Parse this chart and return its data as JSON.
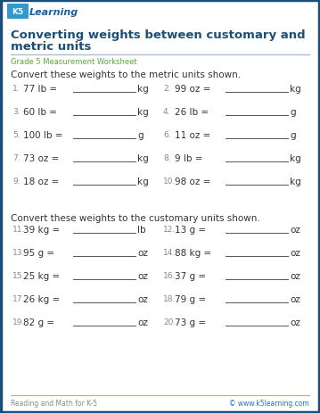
{
  "title_line1": "Converting weights between customary and",
  "title_line2": "metric units",
  "subtitle": "Grade 5 Measurement Worksheet",
  "section1_header": "Convert these weights to the metric units shown.",
  "section2_header": "Convert these weights to the customary units shown.",
  "footer_left": "Reading and Math for K-5",
  "footer_right": "© www.k5learning.com",
  "border_color": "#1a4f7a",
  "title_color": "#1a4f7a",
  "subtitle_color": "#5aaa3a",
  "footer_line_color": "#aaaacc",
  "footer_left_color": "#888888",
  "footer_right_color": "#2277bb",
  "background": "#ffffff",
  "text_color": "#333333",
  "num_color": "#888888",
  "line_color": "#555555",
  "problems_col1": [
    {
      "num": "1.",
      "problem": "77 lb = ",
      "unit": "kg"
    },
    {
      "num": "3.",
      "problem": "60 lb = ",
      "unit": "kg"
    },
    {
      "num": "5.",
      "problem": "100 lb = ",
      "unit": "g"
    },
    {
      "num": "7.",
      "problem": "73 oz = ",
      "unit": "kg"
    },
    {
      "num": "9.",
      "problem": "18 oz = ",
      "unit": "kg"
    }
  ],
  "problems_col2": [
    {
      "num": "2.",
      "problem": "99 oz = ",
      "unit": "kg"
    },
    {
      "num": "4.",
      "problem": "26 lb = ",
      "unit": "g"
    },
    {
      "num": "6.",
      "problem": "11 oz = ",
      "unit": "g"
    },
    {
      "num": "8.",
      "problem": "9 lb = ",
      "unit": "kg"
    },
    {
      "num": "10.",
      "problem": "98 oz = ",
      "unit": "kg"
    }
  ],
  "problems_col3": [
    {
      "num": "11.",
      "problem": "39 kg = ",
      "unit": "lb"
    },
    {
      "num": "13.",
      "problem": "95 g = ",
      "unit": "oz"
    },
    {
      "num": "15.",
      "problem": "25 kg = ",
      "unit": "oz"
    },
    {
      "num": "17.",
      "problem": "26 kg = ",
      "unit": "oz"
    },
    {
      "num": "19.",
      "problem": "82 g = ",
      "unit": "oz"
    }
  ],
  "problems_col4": [
    {
      "num": "12.",
      "problem": "13 g = ",
      "unit": "oz"
    },
    {
      "num": "14.",
      "problem": "88 kg = ",
      "unit": "oz"
    },
    {
      "num": "16.",
      "problem": "37 g = ",
      "unit": "oz"
    },
    {
      "num": "18.",
      "problem": "79 g = ",
      "unit": "oz"
    },
    {
      "num": "20.",
      "problem": "73 g = ",
      "unit": "oz"
    }
  ]
}
